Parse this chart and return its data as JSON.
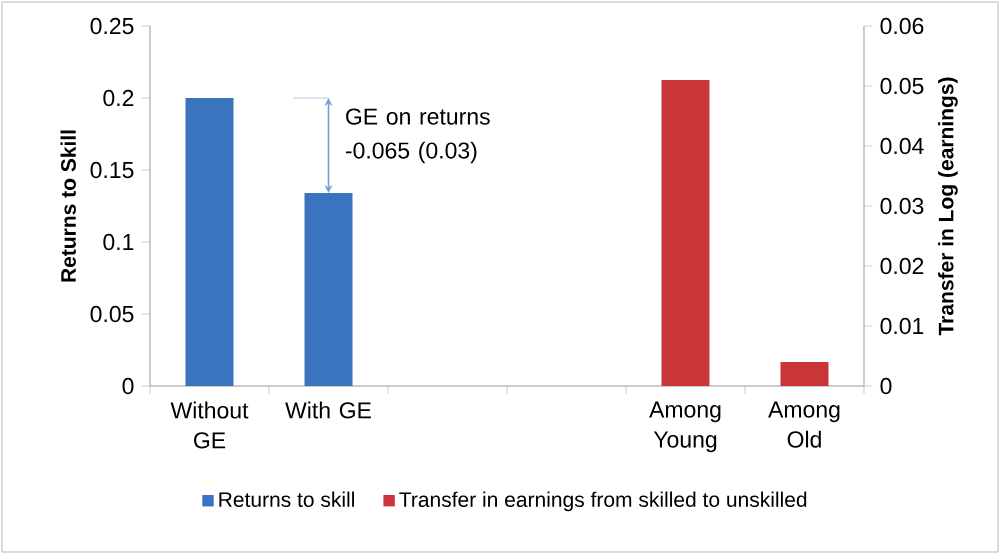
{
  "chart_data": {
    "type": "bar",
    "ylabel": "Returns to Skill",
    "y2label": "Transfer in Log (earnings)",
    "categories": [
      "Without GE",
      "With GE",
      null,
      null,
      "Among Young",
      "Among Old"
    ],
    "series": [
      {
        "name": "Returns to skill",
        "color": "#3a74be",
        "values": [
          0.2,
          0.134,
          null,
          null,
          null,
          null
        ]
      },
      {
        "name": "Transfer in earnings from skilled to unskilled",
        "color": "#c8363a",
        "axis": "y2",
        "values": [
          null,
          null,
          null,
          null,
          0.051,
          0.004
        ]
      }
    ],
    "ylim": [
      0,
      0.25
    ],
    "yticks": [
      0,
      0.05,
      0.1,
      0.15,
      0.2,
      0.25
    ],
    "y2lim": [
      0,
      0.06
    ],
    "y2ticks": [
      0,
      0.01,
      0.02,
      0.03,
      0.04,
      0.05,
      0.06
    ],
    "legend": "bottom",
    "annotations": [
      {
        "text": "GE on returns -0.065 (0.03)",
        "x": "With GE",
        "y": 0.134
      }
    ]
  }
}
